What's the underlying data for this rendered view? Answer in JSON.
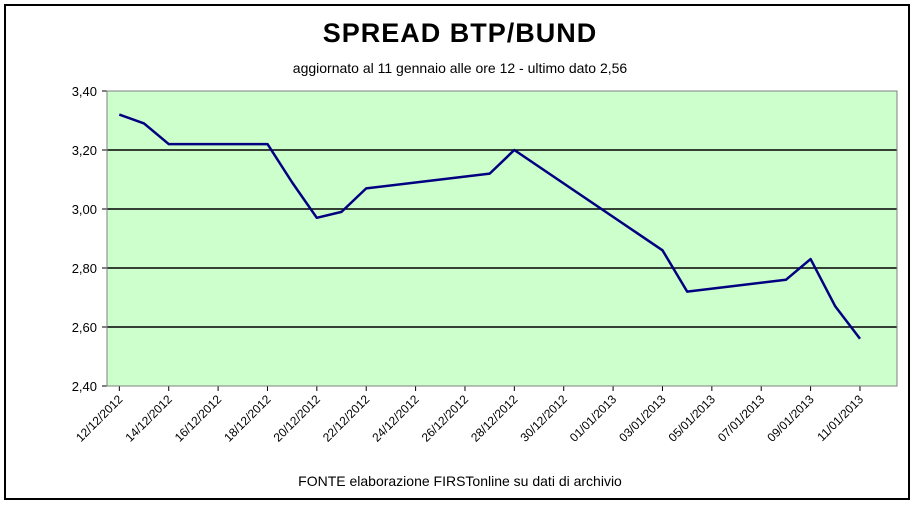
{
  "chart_data": {
    "type": "line",
    "title": "SPREAD  BTP/BUND",
    "subtitle": "aggiornato al 11 gennaio alle ore 12 - ultimo dato 2,56",
    "source": "FONTE elaborazione FIRSTonline su dati di archivio",
    "xlabel": "",
    "ylabel": "",
    "ylim": [
      2.4,
      3.4
    ],
    "grid": true,
    "legend": "none",
    "colors": {
      "plot_bg": "#ccffcc",
      "line": "#000080",
      "grid": "#000000"
    },
    "y_ticks": [
      "2,40",
      "2,60",
      "2,80",
      "3,00",
      "3,20",
      "3,40"
    ],
    "x_tick_labels": [
      "12/12/2012",
      "14/12/2012",
      "16/12/2012",
      "18/12/2012",
      "20/12/2012",
      "22/12/2012",
      "24/12/2012",
      "26/12/2012",
      "28/12/2012",
      "30/12/2012",
      "01/01/2013",
      "03/01/2013",
      "05/01/2013",
      "07/01/2013",
      "09/01/2013",
      "11/01/2013"
    ],
    "series": [
      {
        "x": [
          "12/12/2012",
          "13/12/2012",
          "14/12/2012",
          "18/12/2012",
          "19/12/2012",
          "20/12/2012",
          "21/12/2012",
          "22/12/2012",
          "27/12/2012",
          "28/12/2012",
          "03/01/2013",
          "04/01/2013",
          "08/01/2013",
          "09/01/2013",
          "10/01/2013",
          "11/01/2013"
        ],
        "values": [
          3.32,
          3.29,
          3.22,
          3.22,
          3.09,
          2.97,
          2.99,
          3.07,
          3.12,
          3.2,
          2.86,
          2.72,
          2.76,
          2.83,
          2.67,
          2.56
        ]
      }
    ]
  }
}
